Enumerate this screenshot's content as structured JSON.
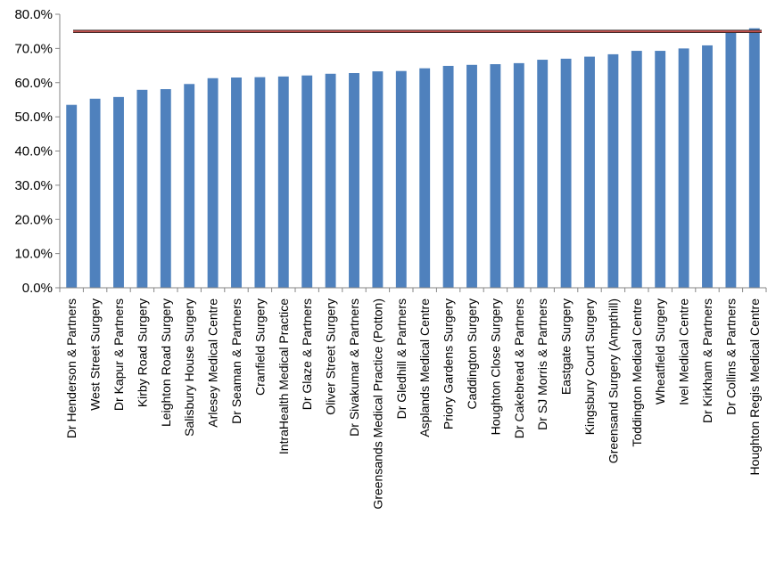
{
  "chart_data": {
    "type": "bar",
    "title": "",
    "xlabel": "",
    "ylabel": "",
    "ylim": [
      0,
      80
    ],
    "y_ticks": [
      "0.0%",
      "10.0%",
      "20.0%",
      "30.0%",
      "40.0%",
      "50.0%",
      "60.0%",
      "70.0%",
      "80.0%"
    ],
    "grid": false,
    "legend": "none",
    "categories": [
      "Dr Henderson & Partners",
      "West Street Surgery",
      "Dr Kapur & Partners",
      "Kirby Road Surgery",
      "Leighton Road Surgery",
      "Salisbury House Surgery",
      "Arlesey Medical Centre",
      "Dr Seaman & Partners",
      "Cranfield Surgery",
      "IntraHealth Medical Practice",
      "Dr Glaze & Partners",
      "Oliver Street Surgery",
      "Dr Sivakumar & Partners",
      "Greensands Medical Practice (Potton)",
      "Dr Gledhill & Partners",
      "Asplands Medical Centre",
      "Priory Gardens Surgery",
      "Caddington Surgery",
      "Houghton Close Surgery",
      "Dr Cakebread & Partners",
      "Dr SJ Morris & Partners",
      "Eastgate Surgery",
      "Kingsbury Court Surgery",
      "Greensand Surgery (Ampthill)",
      "Toddington Medical Centre",
      "Wheatfield Surgery",
      "Ivel Medical Centre",
      "Dr Kirkham & Partners",
      "Dr Collins & Partners",
      "Houghton Regis Medical Centre"
    ],
    "values": [
      53.5,
      55.3,
      55.8,
      57.9,
      58.1,
      59.6,
      61.3,
      61.5,
      61.6,
      61.8,
      62.1,
      62.6,
      62.8,
      63.3,
      63.4,
      64.2,
      64.9,
      65.2,
      65.4,
      65.7,
      66.7,
      67.0,
      67.6,
      68.3,
      69.3,
      69.3,
      70.0,
      70.9,
      74.7,
      75.9
    ],
    "target_line": 75.0,
    "colors": {
      "bar": "#4f81bd",
      "target_line": "#c0504d",
      "target_line_outline": "#1f1f1f",
      "axis": "#868686"
    }
  }
}
